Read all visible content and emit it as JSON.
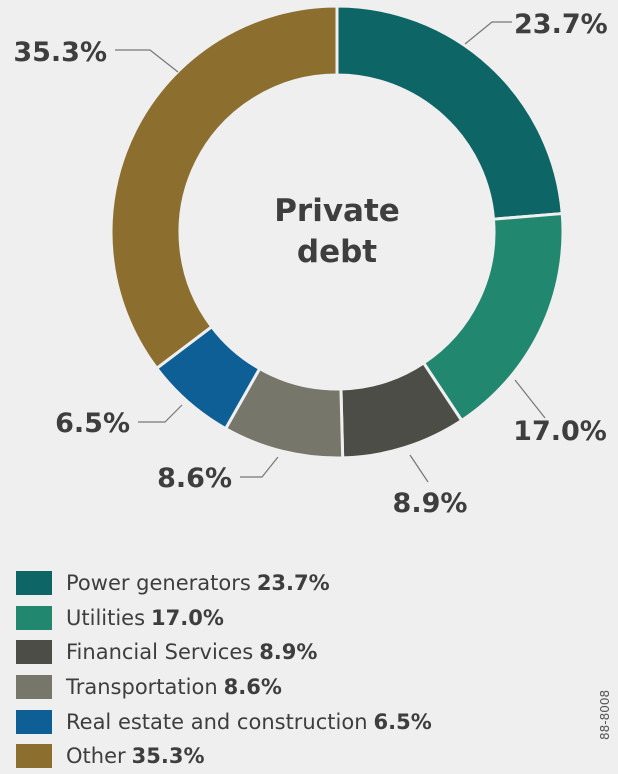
{
  "chart_data": {
    "type": "pie",
    "title": "Private debt",
    "slices": [
      {
        "label": "Power generators",
        "value": 23.7,
        "display": "23.7%",
        "color": "#0d6665"
      },
      {
        "label": "Utilities",
        "value": 17.0,
        "display": "17.0%",
        "color": "#22876f"
      },
      {
        "label": "Financial Services",
        "value": 8.9,
        "display": "8.9%",
        "color": "#4b4d46"
      },
      {
        "label": "Transportation",
        "value": 8.6,
        "display": "8.6%",
        "color": "#76776a"
      },
      {
        "label": "Real estate and construction",
        "value": 6.5,
        "display": "6.5%",
        "color": "#0e5f95"
      },
      {
        "label": "Other",
        "value": 35.3,
        "display": "35.3%",
        "color": "#8c6f2f"
      }
    ],
    "legend_position": "bottom"
  },
  "center": {
    "line1": "Private",
    "line2": "debt"
  },
  "document_code": "88-8008"
}
